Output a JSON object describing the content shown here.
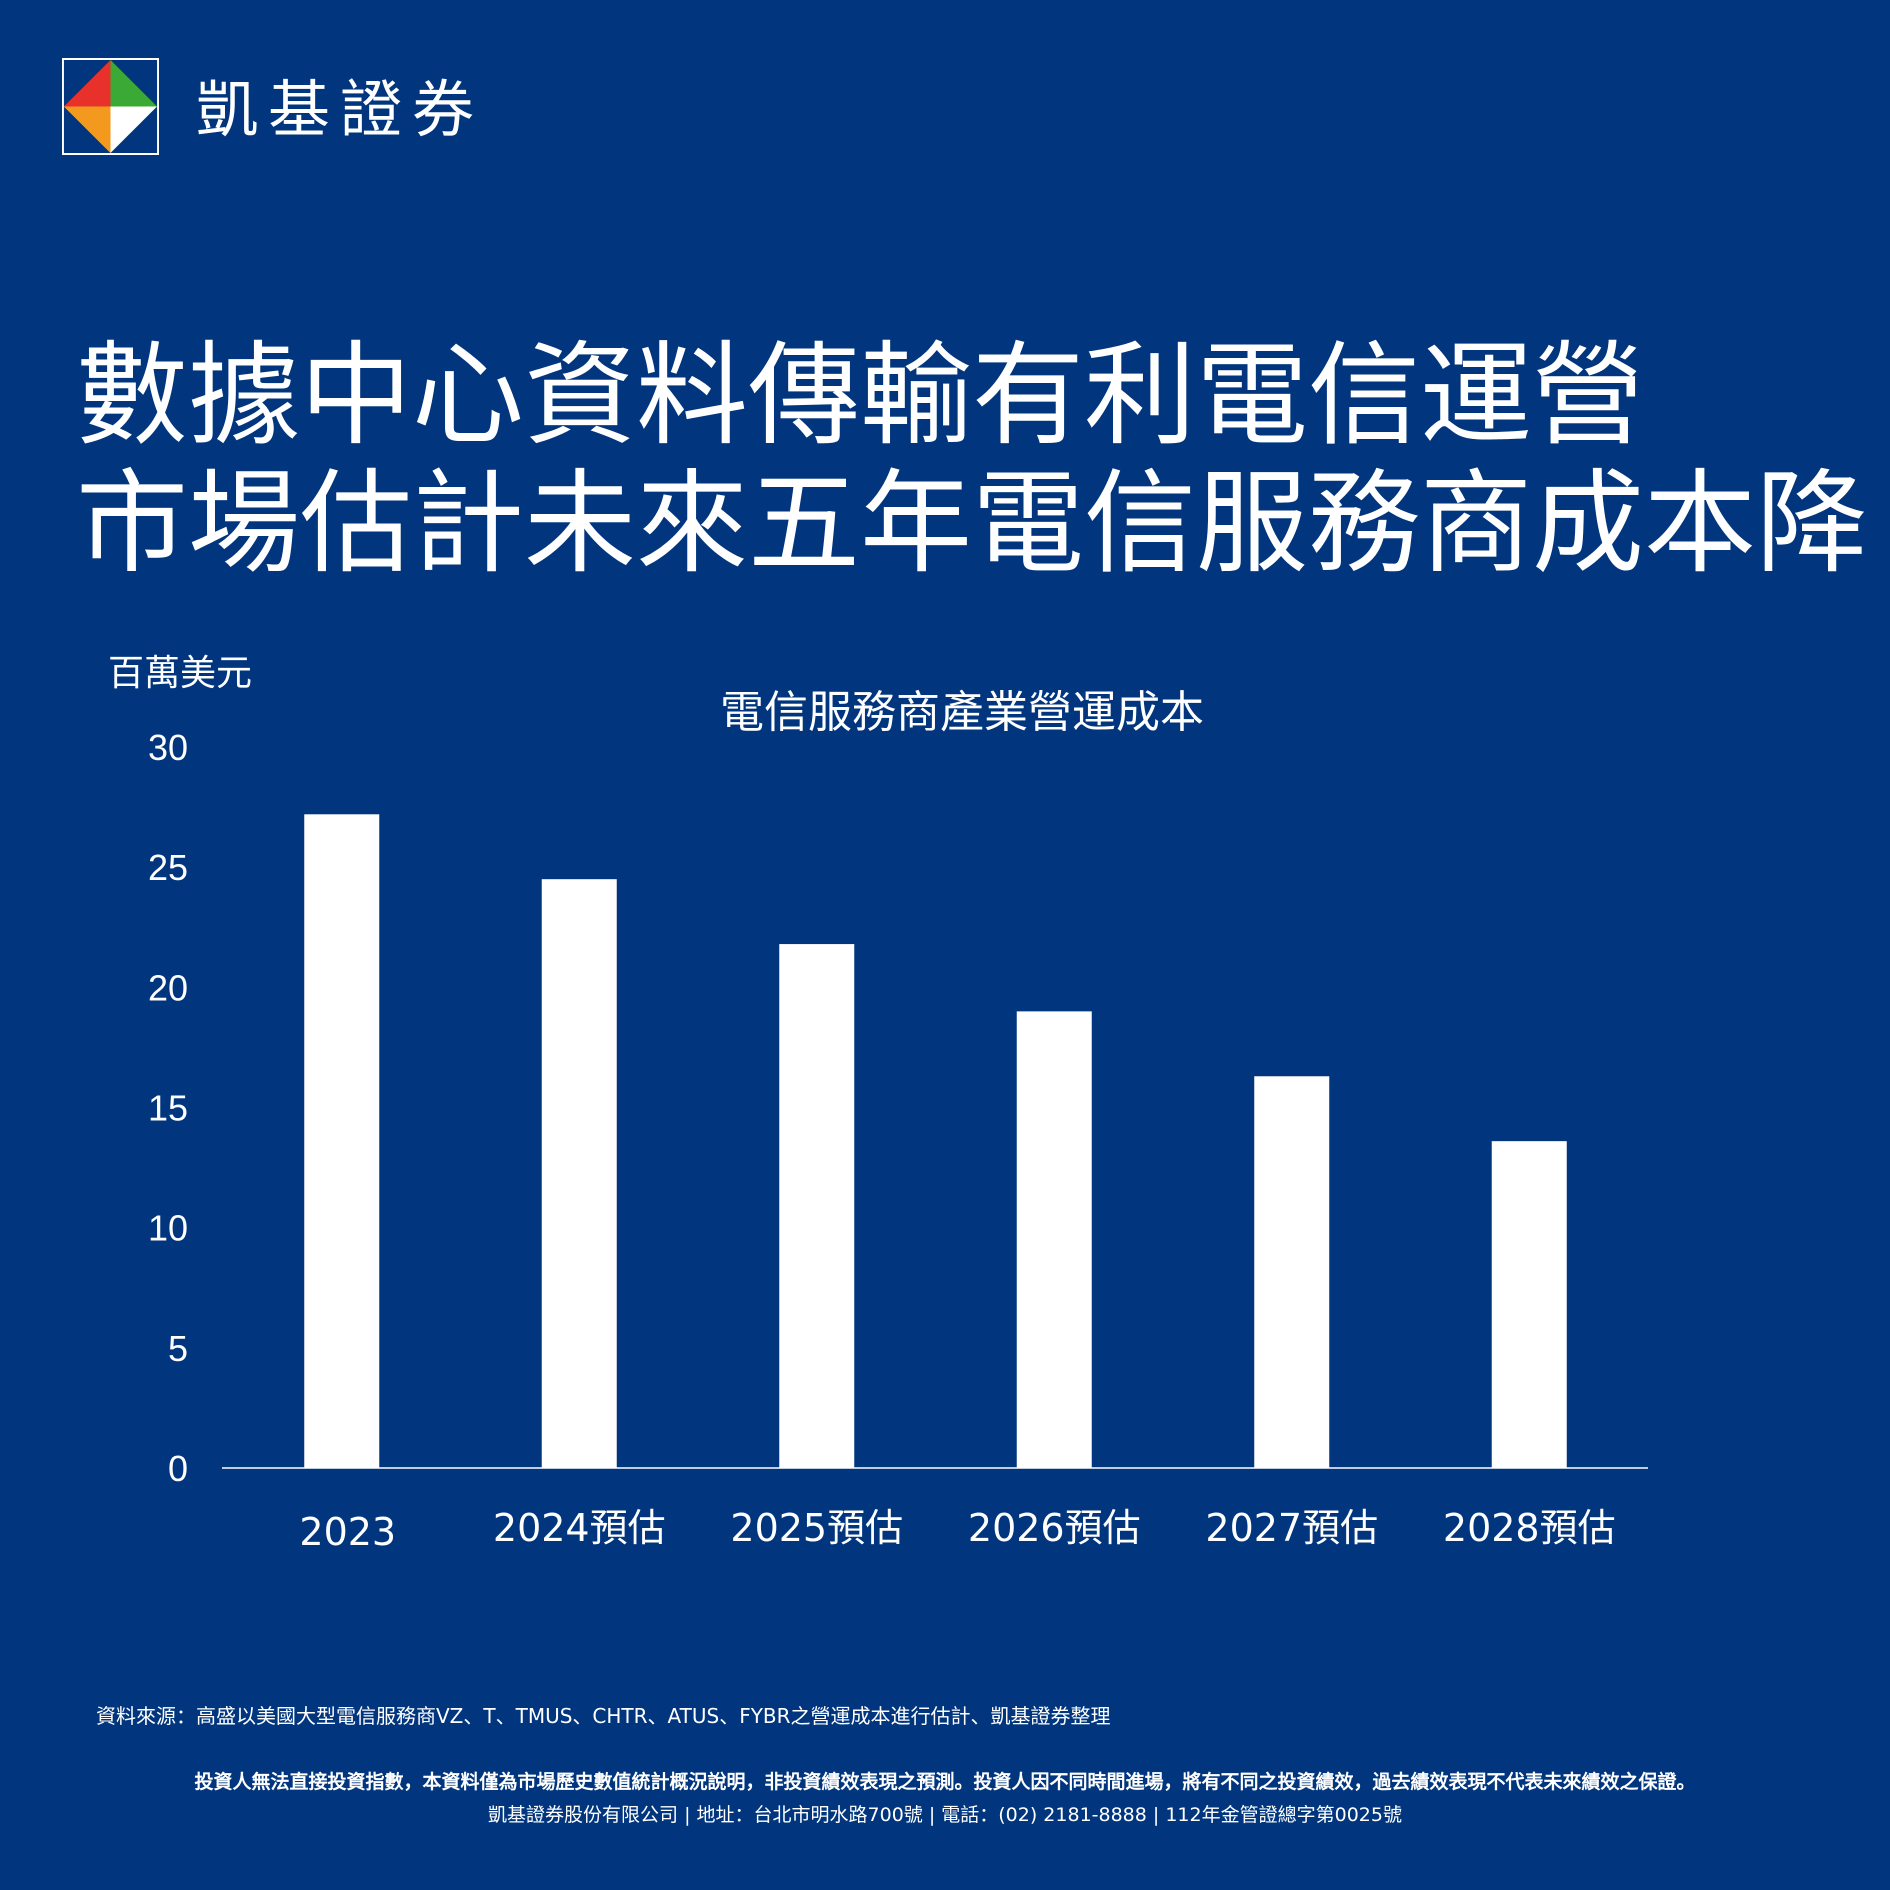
{
  "brand": {
    "name": "凱基證券",
    "logo_colors": {
      "red": "#e8312a",
      "orange": "#f39a1e",
      "green": "#3aa935",
      "blue": "#1d63b5"
    }
  },
  "headline": {
    "line1": "數據中心資料傳輸有利電信運營",
    "line2": "市場估計未來五年電信服務商成本降"
  },
  "chart_data": {
    "type": "bar",
    "title": "電信服務商產業營運成本",
    "ylabel": "百萬美元",
    "xlabel": "",
    "categories": [
      "2023",
      "2024預估",
      "2025預估",
      "2026預估",
      "2027預估",
      "2028預估"
    ],
    "values": [
      27.2,
      24.5,
      21.8,
      19.0,
      16.3,
      13.6
    ],
    "ylim": [
      0,
      30
    ],
    "yticks": [
      0,
      5,
      10,
      15,
      20,
      25,
      30
    ],
    "grid": false,
    "bar_color": "#ffffff",
    "background": "#01367e"
  },
  "footer": {
    "source": "資料來源：高盛以美國大型電信服務商VZ、T、TMUS、CHTR、ATUS、FYBR之營運成本進行估計、凱基證券整理",
    "disclaimer": "投資人無法直接投資指數，本資料僅為市場歷史數值統計概況說明，非投資績效表現之預測。投資人因不同時間進場，將有不同之投資績效，過去績效表現不代表未來績效之保證。",
    "company": "凱基證券股份有限公司 | 地址：台北市明水路700號 | 電話：(02) 2181-8888 | 112年金管證總字第0025號"
  }
}
